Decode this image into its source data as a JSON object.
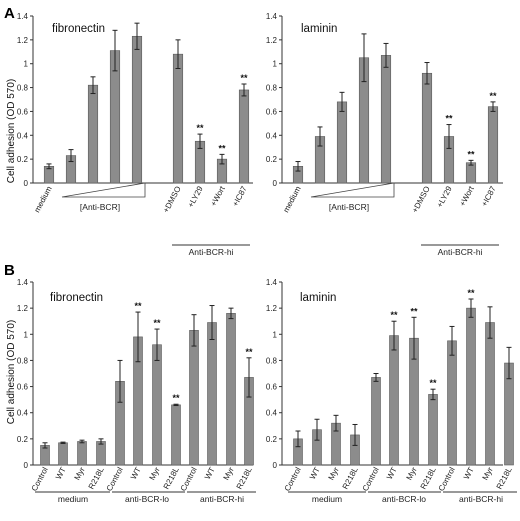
{
  "figure": {
    "panel_labels": [
      "A",
      "B"
    ],
    "ylabel": "Cell adhesion (OD 570)"
  },
  "chart_data": [
    {
      "type": "bar",
      "panel": "A",
      "title": "fibronectin",
      "ylim": [
        0,
        1.4
      ],
      "ticks": [
        "0",
        "0.2",
        "0.4",
        "0.6",
        "0.8",
        "1",
        "1.2",
        "1.4"
      ],
      "categories": [
        "medium",
        "",
        "",
        "",
        "",
        "+DMSO",
        "+LY29",
        "+Wort",
        "+IC87"
      ],
      "values": [
        0.14,
        0.23,
        0.82,
        1.11,
        1.23,
        1.08,
        0.35,
        0.2,
        0.78
      ],
      "errors": [
        0.02,
        0.05,
        0.07,
        0.17,
        0.11,
        0.12,
        0.06,
        0.04,
        0.05
      ],
      "significance": [
        "",
        "",
        "",
        "",
        "",
        "",
        "**",
        "**",
        "**"
      ],
      "groups": [
        {
          "label": "[Anti-BCR]"
        },
        {
          "label": "Anti-BCR-hi"
        }
      ]
    },
    {
      "type": "bar",
      "panel": "A",
      "title": "laminin",
      "ylim": [
        0,
        1.4
      ],
      "ticks": [
        "0",
        "0.2",
        "0.4",
        "0.6",
        "0.8",
        "1",
        "1.2",
        "1.4"
      ],
      "categories": [
        "medium",
        "",
        "",
        "",
        "",
        "+DMSO",
        "+LY29",
        "+Wort",
        "+IC87"
      ],
      "values": [
        0.14,
        0.39,
        0.68,
        1.05,
        1.07,
        0.92,
        0.39,
        0.17,
        0.64
      ],
      "errors": [
        0.04,
        0.08,
        0.08,
        0.2,
        0.1,
        0.09,
        0.1,
        0.02,
        0.04
      ],
      "significance": [
        "",
        "",
        "",
        "",
        "",
        "",
        "**",
        "**",
        "**"
      ],
      "groups": [
        {
          "label": "[Anti-BCR]"
        },
        {
          "label": "Anti-BCR-hi"
        }
      ]
    },
    {
      "type": "bar",
      "panel": "B",
      "title": "fibronectin",
      "ylim": [
        0,
        1.4
      ],
      "ticks": [
        "0",
        "0.2",
        "0.4",
        "0.6",
        "0.8",
        "1",
        "1.2",
        "1.4"
      ],
      "categories": [
        "Control",
        "WT",
        "Myr",
        "R218L",
        "Control",
        "WT",
        "Myr",
        "R218L",
        "Control",
        "WT",
        "Myr",
        "R218L"
      ],
      "values": [
        0.15,
        0.17,
        0.18,
        0.18,
        0.64,
        0.98,
        0.92,
        0.46,
        1.03,
        1.09,
        1.16,
        0.67
      ],
      "errors": [
        0.02,
        0.005,
        0.01,
        0.02,
        0.16,
        0.19,
        0.12,
        0.005,
        0.12,
        0.13,
        0.04,
        0.15
      ],
      "significance": [
        "",
        "",
        "",
        "",
        "",
        "**",
        "**",
        "**",
        "",
        "",
        "",
        "**"
      ],
      "groups": [
        {
          "label": "medium"
        },
        {
          "label": "anti-BCR-lo"
        },
        {
          "label": "anti-BCR-hi"
        }
      ]
    },
    {
      "type": "bar",
      "panel": "B",
      "title": "laminin",
      "ylim": [
        0,
        1.4
      ],
      "ticks": [
        "0",
        "0.2",
        "0.4",
        "0.6",
        "0.8",
        "1",
        "1.2",
        "1.4"
      ],
      "categories": [
        "Control",
        "WT",
        "Myr",
        "R218L",
        "Control",
        "WT",
        "Myr",
        "R218L",
        "Control",
        "WT",
        "Myr",
        "R218L"
      ],
      "values": [
        0.2,
        0.27,
        0.32,
        0.23,
        0.67,
        0.99,
        0.97,
        0.54,
        0.95,
        1.2,
        1.09,
        0.78
      ],
      "errors": [
        0.06,
        0.08,
        0.06,
        0.08,
        0.03,
        0.11,
        0.16,
        0.04,
        0.11,
        0.07,
        0.12,
        0.12
      ],
      "significance": [
        "",
        "",
        "",
        "",
        "",
        "**",
        "**",
        "**",
        "",
        "**",
        "",
        ""
      ],
      "groups": [
        {
          "label": "medium"
        },
        {
          "label": "anti-BCR-lo"
        },
        {
          "label": "anti-BCR-hi"
        }
      ]
    }
  ]
}
